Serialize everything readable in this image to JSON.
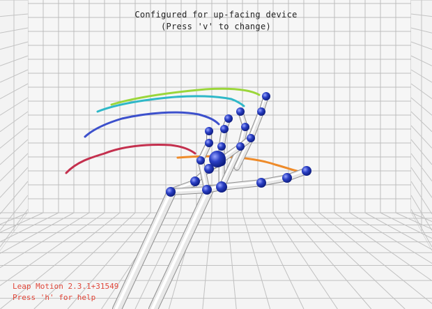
{
  "overlay": {
    "config_line": "Configured for up-facing device",
    "config_hint": "(Press 'v' to change)",
    "version_line": "Leap Motion 2.3.1+31549",
    "help_line": "Press 'h' for help"
  },
  "colors": {
    "background": "#ffffff",
    "grid": "#bdbdbd",
    "bone": "#e6e6e6",
    "joint": "#2a3fc4",
    "palm": "#1f33b8",
    "text_primary": "#222222",
    "text_status": "#e0473a"
  },
  "trails": [
    {
      "name": "thumb-trail",
      "color": "#ee8b2a"
    },
    {
      "name": "index-trail",
      "color": "#c4304e"
    },
    {
      "name": "middle-trail",
      "color": "#3c50cc"
    },
    {
      "name": "ring-trail",
      "color": "#2fb8c8"
    },
    {
      "name": "pinky-trail",
      "color": "#9bd63a"
    }
  ],
  "icons": {
    "hand-skeleton": "hand-skeleton-icon"
  }
}
